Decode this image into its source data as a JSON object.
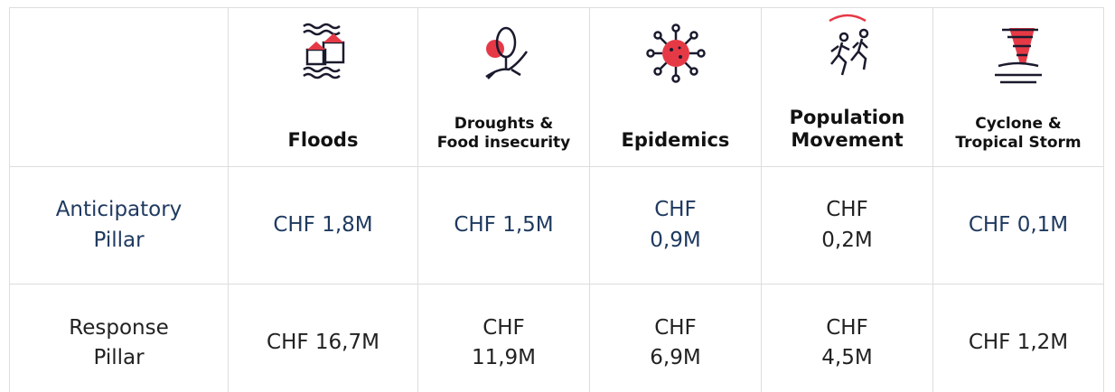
{
  "header": {
    "columns": [
      "Floods",
      "Droughts & Food insecurity",
      "Epidemics",
      "Population Movement",
      "Cyclone & Tropical Storm"
    ]
  },
  "rows": [
    {
      "label": "Anticipatory Pillar",
      "cells": [
        "CHF 1,8M",
        "CHF 1,5M",
        "CHF 0,9M",
        "CHF 0,2M",
        "CHF 0,1M"
      ]
    },
    {
      "label": "Response Pillar",
      "cells": [
        "CHF 16,7M",
        "CHF 11,9M",
        "CHF 6,9M",
        "CHF 4,5M",
        "CHF 1,2M"
      ]
    }
  ]
}
